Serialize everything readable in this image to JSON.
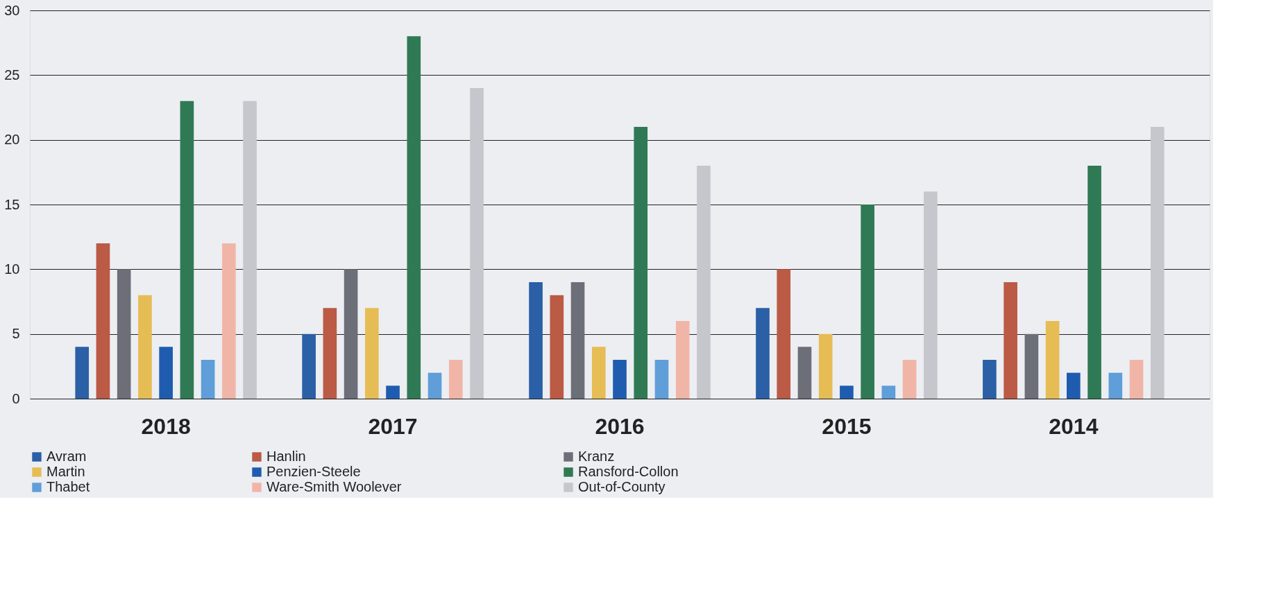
{
  "chart_data": {
    "type": "bar",
    "categories": [
      "2018",
      "2017",
      "2016",
      "2015",
      "2014"
    ],
    "series": [
      {
        "name": "Avram",
        "color": "#2b5fa6",
        "values": [
          4,
          5,
          9,
          7,
          3
        ]
      },
      {
        "name": "Hanlin",
        "color": "#bb5a45",
        "values": [
          12,
          7,
          8,
          10,
          9
        ]
      },
      {
        "name": "Kranz",
        "color": "#6c6f78",
        "values": [
          10,
          10,
          9,
          4,
          5
        ]
      },
      {
        "name": "Martin",
        "color": "#e6bd55",
        "values": [
          8,
          7,
          4,
          5,
          6
        ]
      },
      {
        "name": "Penzien-Steele",
        "color": "#1f5cb0",
        "values": [
          4,
          1,
          3,
          1,
          2
        ]
      },
      {
        "name": "Ransford-Collon",
        "color": "#2f7a55",
        "values": [
          23,
          28,
          21,
          15,
          18
        ]
      },
      {
        "name": "Thabet",
        "color": "#5f9ed8",
        "values": [
          3,
          2,
          3,
          1,
          2
        ]
      },
      {
        "name": "Ware-Smith Woolever",
        "color": "#f1b5a8",
        "values": [
          12,
          3,
          6,
          3,
          3
        ]
      },
      {
        "name": "Out-of-County",
        "color": "#c5c7cd",
        "values": [
          23,
          24,
          18,
          16,
          21
        ]
      }
    ],
    "ylim": [
      0,
      30
    ],
    "yticks": [
      0,
      5,
      10,
      15,
      20,
      25,
      30
    ],
    "grid": "y",
    "legend": "bottom"
  }
}
